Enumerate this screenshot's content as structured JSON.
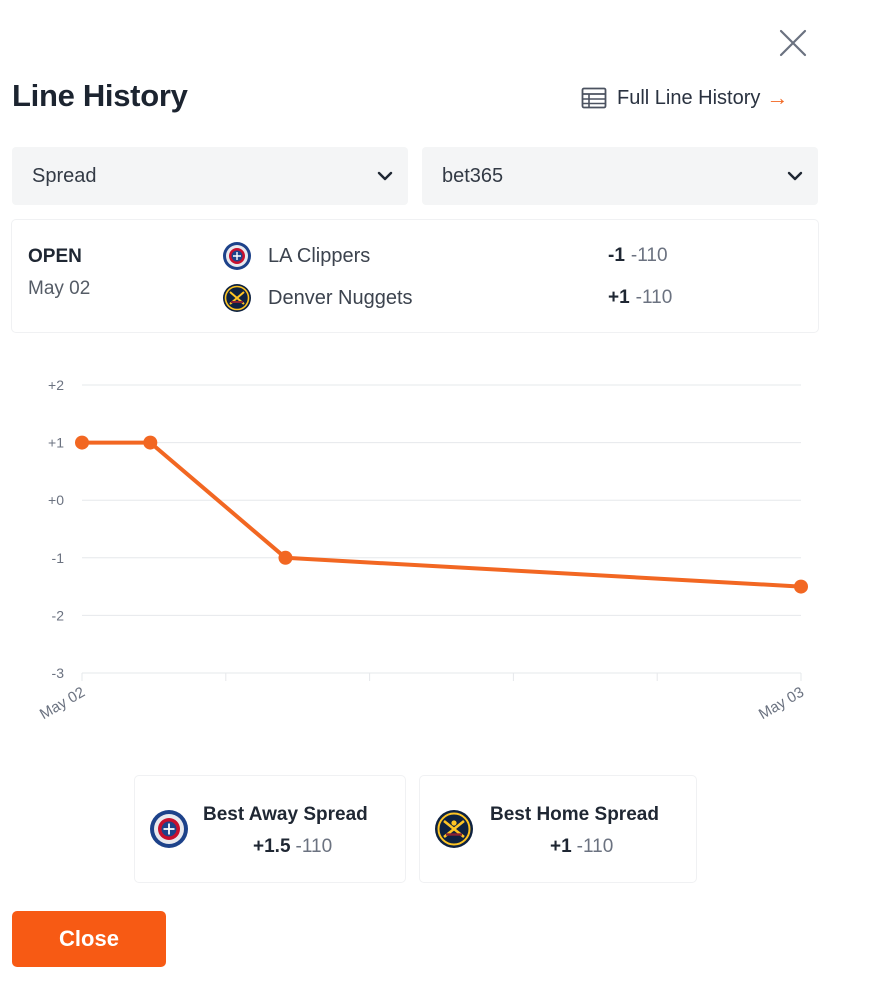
{
  "header": {
    "title": "Line History",
    "full_link_label": "Full Line History",
    "full_link_arrow": "→"
  },
  "filters": {
    "market_selected": "Spread",
    "book_selected": "bet365"
  },
  "open": {
    "label": "OPEN",
    "date": "May 02",
    "teams": [
      {
        "name": "LA Clippers",
        "line": "-1",
        "price": "-110"
      },
      {
        "name": "Denver Nuggets",
        "line": "+1",
        "price": "-110"
      }
    ]
  },
  "chart_data": {
    "type": "line",
    "y_ticks": [
      "+2",
      "+1",
      "+0",
      "-1",
      "-2",
      "-3"
    ],
    "x_tick_labels": [
      "May 02",
      "May 03"
    ],
    "x": [
      0,
      0.095,
      0.283,
      1.0
    ],
    "values": [
      1,
      1,
      -1,
      -1.5
    ],
    "ylim": [
      -3,
      2
    ],
    "grid": true,
    "line_color": "#f26722"
  },
  "best": {
    "away": {
      "title": "Best Away Spread",
      "line": "+1.5",
      "price": "-110"
    },
    "home": {
      "title": "Best Home Spread",
      "line": "+1",
      "price": "-110"
    }
  },
  "footer": {
    "close_label": "Close"
  },
  "colors": {
    "accent": "#f26722",
    "button": "#f75a14"
  },
  "icons": {
    "close": "close-icon",
    "table": "table-icon",
    "chevron": "chevron-down-icon",
    "clippers": "clippers-logo-icon",
    "nuggets": "nuggets-logo-icon"
  }
}
